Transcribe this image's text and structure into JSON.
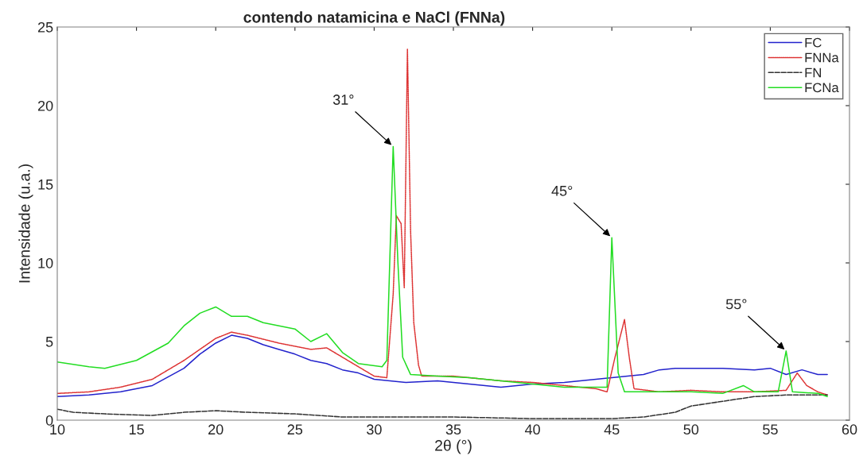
{
  "chart_data": {
    "type": "line",
    "title": "contendo natamicina e NaCl (FNNa)",
    "xlabel": "2θ (°)",
    "ylabel": "Intensidade (u.a.)",
    "xlim": [
      10,
      60
    ],
    "xticks": [
      10,
      15,
      20,
      25,
      30,
      35,
      40,
      45,
      50,
      55,
      60
    ],
    "ylim": [
      0,
      25
    ],
    "yticks": [
      0,
      5,
      10,
      15,
      20,
      25
    ],
    "grid": false,
    "legend": "top right",
    "marker": "none",
    "series": [
      {
        "name": "FC",
        "color": "#2222cc",
        "line_style": "solid",
        "x": [
          10,
          12,
          14,
          16,
          18,
          19,
          20,
          21,
          22,
          23,
          24,
          25,
          26,
          27,
          28,
          29,
          30,
          32,
          34,
          36,
          38,
          40,
          42,
          44,
          45,
          46,
          47,
          48,
          49,
          50,
          52,
          54,
          55,
          56,
          57,
          58,
          58.6
        ],
        "values": [
          1.5,
          1.6,
          1.8,
          2.2,
          3.3,
          4.2,
          4.9,
          5.4,
          5.2,
          4.8,
          4.5,
          4.2,
          3.8,
          3.6,
          3.2,
          3.0,
          2.6,
          2.4,
          2.5,
          2.3,
          2.1,
          2.3,
          2.4,
          2.6,
          2.7,
          2.8,
          2.9,
          3.2,
          3.3,
          3.3,
          3.3,
          3.2,
          3.3,
          2.9,
          3.2,
          2.9,
          2.9
        ]
      },
      {
        "name": "FNNa",
        "color": "#dd3333",
        "line_style": "dotted",
        "x": [
          10,
          12,
          14,
          16,
          18,
          20,
          21,
          22,
          24,
          26,
          27,
          28,
          29,
          30,
          30.8,
          31.2,
          31.4,
          31.7,
          31.9,
          32.1,
          32.3,
          32.5,
          32.8,
          33,
          35,
          38,
          40,
          42,
          44,
          44.7,
          45.2,
          45.5,
          45.8,
          46.1,
          46.4,
          48,
          50,
          52,
          54,
          56,
          56.7,
          57.3,
          58,
          58.6
        ],
        "values": [
          1.7,
          1.8,
          2.1,
          2.6,
          3.8,
          5.2,
          5.6,
          5.4,
          4.9,
          4.5,
          4.6,
          4.0,
          3.4,
          2.8,
          2.7,
          8,
          13,
          12.5,
          8.4,
          23.6,
          12,
          6.2,
          3.5,
          2.8,
          2.8,
          2.5,
          2.4,
          2.2,
          2.0,
          1.8,
          4,
          5.2,
          6.4,
          4,
          2,
          1.8,
          1.9,
          1.8,
          1.8,
          1.9,
          3,
          2.2,
          1.8,
          1.6
        ]
      },
      {
        "name": "FN",
        "color": "#333333",
        "line_style": "dashed",
        "x": [
          10,
          11,
          13,
          16,
          18,
          20,
          22,
          25,
          28,
          30,
          35,
          40,
          45,
          47,
          49,
          50,
          52,
          54,
          56,
          58.6
        ],
        "values": [
          0.7,
          0.5,
          0.4,
          0.3,
          0.5,
          0.6,
          0.5,
          0.4,
          0.2,
          0.2,
          0.2,
          0.1,
          0.1,
          0.2,
          0.5,
          0.9,
          1.2,
          1.5,
          1.6,
          1.6
        ]
      },
      {
        "name": "FCNa",
        "color": "#22dd22",
        "line_style": "solid",
        "x": [
          10,
          12,
          13,
          15,
          17,
          18,
          19,
          20,
          21,
          22,
          23,
          24,
          25,
          26,
          27,
          28,
          29,
          30.5,
          30.8,
          31.2,
          31.5,
          31.8,
          32.3,
          34,
          36,
          38,
          40,
          42,
          44,
          44.7,
          45,
          45.4,
          45.8,
          48,
          50,
          52,
          53.3,
          54,
          55.5,
          56,
          56.4,
          58,
          58.6
        ],
        "values": [
          3.7,
          3.4,
          3.3,
          3.8,
          4.9,
          6.0,
          6.8,
          7.2,
          6.6,
          6.6,
          6.2,
          6.0,
          5.8,
          5.0,
          5.5,
          4.3,
          3.6,
          3.4,
          3.8,
          17.4,
          10,
          4,
          2.9,
          2.8,
          2.7,
          2.5,
          2.3,
          2.1,
          2.1,
          2.1,
          11.6,
          3,
          1.8,
          1.8,
          1.8,
          1.7,
          2.2,
          1.8,
          1.8,
          4.4,
          1.8,
          1.7,
          1.5
        ]
      }
    ],
    "annotations": [
      {
        "text": "31°",
        "x": 31.2,
        "y": 17.4
      },
      {
        "text": "45°",
        "x": 45,
        "y": 11.6
      },
      {
        "text": "55°",
        "x": 56,
        "y": 4.4
      }
    ]
  }
}
